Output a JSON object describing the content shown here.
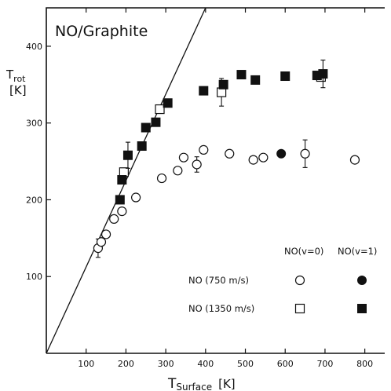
{
  "chart_data": {
    "type": "scatter",
    "title": "NO/Graphite",
    "xlabel": "T",
    "xlabel_sub": "Surface",
    "xlabel_unit": "[K]",
    "ylabel_line1": "T",
    "ylabel_sub": "rot",
    "ylabel_line2": "[K]",
    "xlim": [
      0,
      850
    ],
    "ylim": [
      0,
      450
    ],
    "xticks": [
      100,
      200,
      300,
      400,
      500,
      600,
      700,
      800
    ],
    "yticks": [
      100,
      200,
      300,
      400
    ],
    "reference_line": {
      "x": [
        0,
        400
      ],
      "y": [
        0,
        450
      ]
    },
    "legend_headers": [
      "NO(v=0)",
      "NO(v=1)"
    ],
    "legend_rows": [
      {
        "label": "NO (750 m/s)",
        "marker": "circle"
      },
      {
        "label": "NO (1350 m/s)",
        "marker": "square"
      }
    ],
    "series": [
      {
        "name": "NO (750 m/s) NO(v=0)",
        "marker": "circle",
        "filled": false,
        "points": [
          [
            130,
            137
          ],
          [
            138,
            145
          ],
          [
            150,
            155
          ],
          [
            170,
            175
          ],
          [
            190,
            185
          ],
          [
            225,
            203
          ],
          [
            290,
            228
          ],
          [
            330,
            238
          ],
          [
            345,
            255
          ],
          [
            378,
            246
          ],
          [
            395,
            265
          ],
          [
            460,
            260
          ],
          [
            520,
            252
          ],
          [
            545,
            255
          ],
          [
            650,
            260
          ],
          [
            775,
            252
          ]
        ],
        "errors": [
          {
            "x": 130,
            "y": 137,
            "err": 12
          },
          {
            "x": 378,
            "y": 246,
            "err": 10
          },
          {
            "x": 650,
            "y": 260,
            "err": 18
          }
        ]
      },
      {
        "name": "NO (750 m/s) NO(v=1)",
        "marker": "circle",
        "filled": true,
        "points": [
          [
            590,
            260
          ]
        ]
      },
      {
        "name": "NO (1350 m/s) NO(v=0)",
        "marker": "square",
        "filled": false,
        "points": [
          [
            195,
            236
          ],
          [
            285,
            318
          ],
          [
            440,
            340
          ],
          [
            690,
            360
          ]
        ],
        "errors": [
          {
            "x": 440,
            "y": 340,
            "err": 18
          }
        ]
      },
      {
        "name": "NO (1350 m/s) NO(v=1)",
        "marker": "square",
        "filled": true,
        "points": [
          [
            185,
            200
          ],
          [
            190,
            226
          ],
          [
            205,
            258
          ],
          [
            240,
            270
          ],
          [
            250,
            294
          ],
          [
            275,
            301
          ],
          [
            305,
            326
          ],
          [
            395,
            342
          ],
          [
            445,
            350
          ],
          [
            490,
            363
          ],
          [
            525,
            356
          ],
          [
            600,
            361
          ],
          [
            680,
            362
          ],
          [
            695,
            364
          ]
        ],
        "errors": [
          {
            "x": 205,
            "y": 258,
            "err": 17
          },
          {
            "x": 695,
            "y": 364,
            "err": 18
          }
        ]
      }
    ]
  }
}
